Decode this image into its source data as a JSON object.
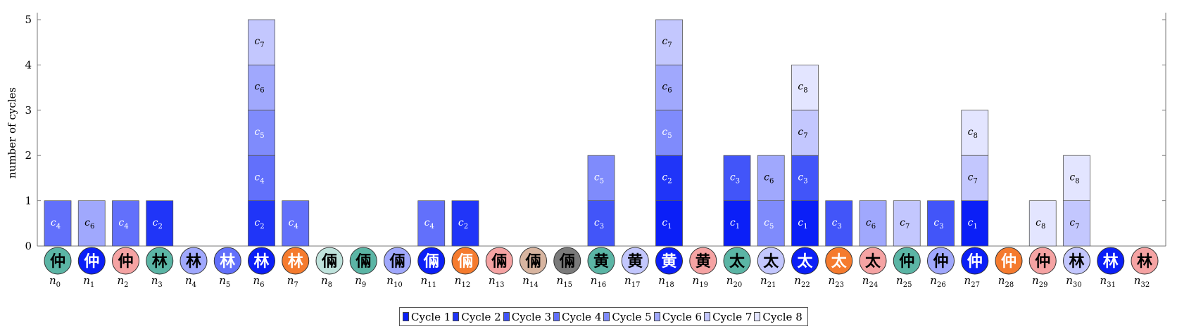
{
  "chart_data": {
    "type": "bar",
    "stacked": true,
    "ylabel": "number of cycles",
    "ylim": [
      0,
      5
    ],
    "yticks": [
      "0",
      "1",
      "2",
      "3",
      "4",
      "5"
    ],
    "grid": false,
    "legend_position": "bottom",
    "series": [
      {
        "name": "Cycle 1",
        "label": "c1",
        "color": "#0b1ff7"
      },
      {
        "name": "Cycle 2",
        "label": "c2",
        "color": "#2035f8"
      },
      {
        "name": "Cycle 3",
        "label": "c3",
        "color": "#4255f9"
      },
      {
        "name": "Cycle 4",
        "label": "c4",
        "color": "#6270fb"
      },
      {
        "name": "Cycle 5",
        "label": "c5",
        "color": "#7f8bfc"
      },
      {
        "name": "Cycle 6",
        "label": "c6",
        "color": "#a0a8fd"
      },
      {
        "name": "Cycle 7",
        "label": "c7",
        "color": "#c3c7fe"
      },
      {
        "name": "Cycle 8",
        "label": "c8",
        "color": "#e3e5ff"
      }
    ],
    "nodes": [
      {
        "label": "n0",
        "glyph": "仲",
        "node_color": "#5bb5a5",
        "cycles": [
          4
        ]
      },
      {
        "label": "n1",
        "glyph": "仲",
        "node_color": "#0b1ff7",
        "cycles": [
          6
        ]
      },
      {
        "label": "n2",
        "glyph": "仲",
        "node_color": "#f5a3a3",
        "cycles": [
          4
        ]
      },
      {
        "label": "n3",
        "glyph": "林",
        "node_color": "#5bb5a5",
        "cycles": [
          2
        ]
      },
      {
        "label": "n4",
        "glyph": "林",
        "node_color": "#a0a8fd",
        "cycles": []
      },
      {
        "label": "n5",
        "glyph": "林",
        "node_color": "#6270fb",
        "cycles": []
      },
      {
        "label": "n6",
        "glyph": "林",
        "node_color": "#0b1ff7",
        "cycles": [
          2,
          4,
          5,
          6,
          7
        ]
      },
      {
        "label": "n7",
        "glyph": "林",
        "node_color": "#f57b2e",
        "cycles": [
          4
        ]
      },
      {
        "label": "n8",
        "glyph": "倆",
        "node_color": "#bfe3dc",
        "cycles": []
      },
      {
        "label": "n9",
        "glyph": "倆",
        "node_color": "#5bb5a5",
        "cycles": []
      },
      {
        "label": "n10",
        "glyph": "倆",
        "node_color": "#a0a8fd",
        "cycles": []
      },
      {
        "label": "n11",
        "glyph": "倆",
        "node_color": "#0b1ff7",
        "cycles": [
          4
        ]
      },
      {
        "label": "n12",
        "glyph": "倆",
        "node_color": "#f57b2e",
        "cycles": [
          2
        ]
      },
      {
        "label": "n13",
        "glyph": "倆",
        "node_color": "#f5a3a3",
        "cycles": []
      },
      {
        "label": "n14",
        "glyph": "倆",
        "node_color": "#d8b5a0",
        "cycles": []
      },
      {
        "label": "n15",
        "glyph": "倆",
        "node_color": "#7a7a7a",
        "cycles": []
      },
      {
        "label": "n16",
        "glyph": "黄",
        "node_color": "#5bb5a5",
        "cycles": [
          3,
          5
        ]
      },
      {
        "label": "n17",
        "glyph": "黄",
        "node_color": "#c3c7fe",
        "cycles": []
      },
      {
        "label": "n18",
        "glyph": "黄",
        "node_color": "#0b1ff7",
        "cycles": [
          1,
          2,
          5,
          6,
          7
        ]
      },
      {
        "label": "n19",
        "glyph": "黄",
        "node_color": "#f5a3a3",
        "cycles": []
      },
      {
        "label": "n20",
        "glyph": "太",
        "node_color": "#5bb5a5",
        "cycles": [
          1,
          3
        ]
      },
      {
        "label": "n21",
        "glyph": "太",
        "node_color": "#c3c7fe",
        "cycles": [
          5,
          6
        ]
      },
      {
        "label": "n22",
        "glyph": "太",
        "node_color": "#0b1ff7",
        "cycles": [
          1,
          3,
          7,
          8
        ]
      },
      {
        "label": "n23",
        "glyph": "太",
        "node_color": "#f57b2e",
        "cycles": [
          3
        ]
      },
      {
        "label": "n24",
        "glyph": "太",
        "node_color": "#f5a3a3",
        "cycles": [
          6
        ]
      },
      {
        "label": "n25",
        "glyph": "仲",
        "node_color": "#5bb5a5",
        "cycles": [
          7
        ]
      },
      {
        "label": "n26",
        "glyph": "仲",
        "node_color": "#a0a8fd",
        "cycles": [
          3
        ]
      },
      {
        "label": "n27",
        "glyph": "仲",
        "node_color": "#0b1ff7",
        "cycles": [
          1,
          7,
          8
        ]
      },
      {
        "label": "n28",
        "glyph": "仲",
        "node_color": "#f57b2e",
        "cycles": []
      },
      {
        "label": "n29",
        "glyph": "仲",
        "node_color": "#f5a3a3",
        "cycles": [
          8
        ]
      },
      {
        "label": "n30",
        "glyph": "林",
        "node_color": "#c3c7fe",
        "cycles": [
          7,
          8
        ]
      },
      {
        "label": "n31",
        "glyph": "林",
        "node_color": "#0b1ff7",
        "cycles": []
      },
      {
        "label": "n32",
        "glyph": "林",
        "node_color": "#f5a3a3",
        "cycles": []
      }
    ]
  }
}
